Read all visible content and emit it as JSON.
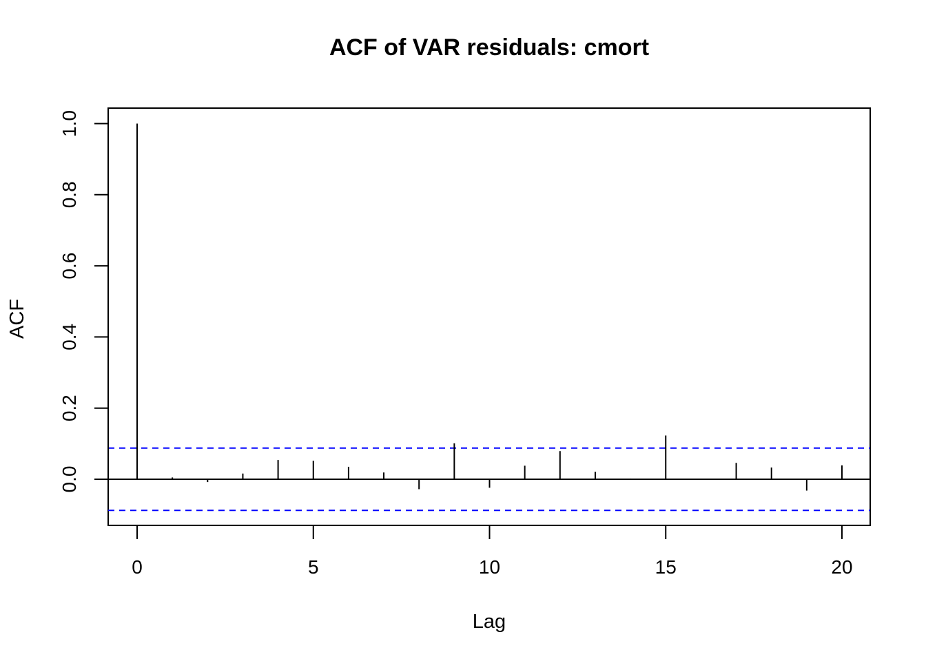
{
  "chart_data": {
    "type": "bar",
    "title": "ACF of VAR residuals: cmort",
    "xlabel": "Lag",
    "ylabel": "ACF",
    "xlim": [
      -0.8,
      20.8
    ],
    "ylim": [
      -0.13,
      1.045
    ],
    "x_ticks": [
      0,
      5,
      10,
      15,
      20
    ],
    "x_tick_labels": [
      "0",
      "5",
      "10",
      "15",
      "20"
    ],
    "y_ticks": [
      0.0,
      0.2,
      0.4,
      0.6,
      0.8,
      1.0
    ],
    "y_tick_labels": [
      "0.0",
      "0.2",
      "0.4",
      "0.6",
      "0.8",
      "1.0"
    ],
    "lags": [
      0,
      1,
      2,
      3,
      4,
      5,
      6,
      7,
      8,
      9,
      10,
      11,
      12,
      13,
      14,
      15,
      16,
      17,
      18,
      19,
      20
    ],
    "acf": [
      1.0,
      0.005,
      -0.008,
      0.016,
      0.054,
      0.052,
      0.035,
      0.019,
      -0.028,
      0.101,
      -0.024,
      0.038,
      0.079,
      0.021,
      0.002,
      0.123,
      0.001,
      0.046,
      0.033,
      -0.032,
      0.039
    ],
    "confidence_bound": 0.0875,
    "zero_line": true,
    "grid": false,
    "colors": {
      "bars": "#000000",
      "confidence_lines": "#0000ff",
      "axes": "#000000"
    }
  }
}
